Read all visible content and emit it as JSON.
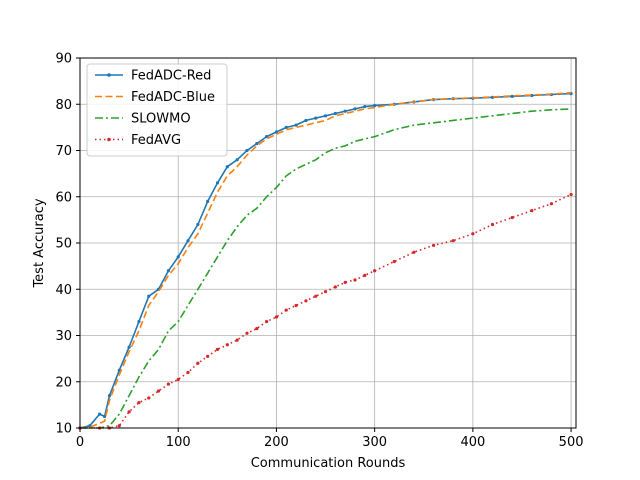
{
  "chart_data": {
    "type": "line",
    "title": "",
    "xlabel": "Communication Rounds",
    "ylabel": "Test Accuracy",
    "xlim": [
      0,
      505
    ],
    "ylim": [
      10,
      90
    ],
    "xticks": [
      0,
      100,
      200,
      300,
      400,
      500
    ],
    "yticks": [
      10,
      20,
      30,
      40,
      50,
      60,
      70,
      80,
      90
    ],
    "grid": true,
    "legend_position": "top-left",
    "series": [
      {
        "name": "FedADC-Red",
        "color": "#1f77b4",
        "style": "solid-dots",
        "x": [
          0,
          10,
          20,
          25,
          30,
          40,
          50,
          60,
          70,
          80,
          90,
          100,
          110,
          120,
          130,
          140,
          150,
          160,
          170,
          180,
          190,
          200,
          210,
          220,
          230,
          240,
          250,
          260,
          270,
          280,
          290,
          300,
          320,
          340,
          360,
          380,
          400,
          420,
          440,
          460,
          480,
          500
        ],
        "y": [
          10.0,
          10.5,
          13.0,
          12.5,
          17.0,
          22.5,
          27.5,
          33.0,
          38.5,
          40.0,
          44.0,
          47.0,
          50.5,
          54.0,
          59.0,
          63.0,
          66.5,
          68.0,
          70.0,
          71.5,
          73.0,
          74.0,
          75.0,
          75.5,
          76.5,
          77.0,
          77.5,
          78.0,
          78.5,
          79.0,
          79.5,
          79.7,
          80.0,
          80.5,
          81.0,
          81.2,
          81.3,
          81.5,
          81.7,
          81.9,
          82.1,
          82.3
        ]
      },
      {
        "name": "FedADC-Blue",
        "color": "#ff7f0e",
        "style": "dashed",
        "x": [
          0,
          10,
          20,
          25,
          30,
          40,
          50,
          60,
          70,
          80,
          90,
          100,
          110,
          120,
          130,
          140,
          150,
          160,
          170,
          180,
          190,
          200,
          210,
          220,
          230,
          240,
          250,
          260,
          270,
          280,
          290,
          300,
          320,
          340,
          360,
          380,
          400,
          420,
          440,
          460,
          480,
          500
        ],
        "y": [
          10.0,
          10.2,
          11.0,
          11.5,
          16.0,
          21.5,
          26.5,
          31.0,
          36.5,
          39.5,
          43.0,
          45.5,
          49.0,
          52.0,
          56.5,
          61.0,
          64.5,
          66.5,
          69.0,
          71.0,
          72.5,
          73.5,
          74.5,
          75.0,
          75.5,
          76.0,
          76.5,
          77.5,
          78.0,
          78.5,
          79.0,
          79.3,
          80.0,
          80.5,
          81.0,
          81.2,
          81.4,
          81.6,
          81.8,
          82.0,
          82.2,
          82.5
        ]
      },
      {
        "name": "SLOWMO",
        "color": "#2ca02c",
        "style": "dashdot",
        "x": [
          0,
          20,
          30,
          40,
          50,
          60,
          70,
          80,
          90,
          100,
          110,
          120,
          130,
          140,
          150,
          160,
          170,
          180,
          190,
          200,
          210,
          220,
          230,
          240,
          250,
          260,
          270,
          280,
          290,
          300,
          320,
          340,
          360,
          380,
          400,
          420,
          440,
          460,
          480,
          500
        ],
        "y": [
          10.0,
          10.0,
          10.5,
          13.0,
          17.0,
          21.0,
          24.5,
          27.0,
          31.0,
          33.0,
          36.5,
          40.0,
          43.5,
          47.0,
          50.5,
          53.5,
          56.0,
          57.5,
          60.0,
          62.0,
          64.5,
          66.0,
          67.0,
          68.0,
          69.5,
          70.5,
          71.0,
          72.0,
          72.5,
          73.0,
          74.5,
          75.5,
          76.0,
          76.5,
          77.0,
          77.5,
          78.0,
          78.5,
          78.8,
          79.0
        ]
      },
      {
        "name": "FedAVG",
        "color": "#d62728",
        "style": "dotted",
        "x": [
          0,
          20,
          30,
          40,
          50,
          60,
          70,
          80,
          90,
          100,
          110,
          120,
          130,
          140,
          150,
          160,
          170,
          180,
          190,
          200,
          210,
          220,
          230,
          240,
          250,
          260,
          270,
          280,
          290,
          300,
          320,
          340,
          360,
          380,
          400,
          420,
          440,
          460,
          480,
          500
        ],
        "y": [
          10.0,
          10.0,
          10.0,
          10.5,
          13.5,
          15.5,
          16.5,
          18.0,
          19.5,
          20.5,
          22.0,
          24.0,
          25.5,
          27.0,
          28.0,
          29.0,
          30.5,
          31.5,
          33.0,
          34.0,
          35.5,
          36.5,
          37.5,
          38.5,
          39.5,
          40.5,
          41.5,
          42.0,
          43.0,
          44.0,
          46.0,
          48.0,
          49.5,
          50.5,
          52.0,
          54.0,
          55.5,
          57.0,
          58.5,
          60.5
        ]
      }
    ]
  }
}
